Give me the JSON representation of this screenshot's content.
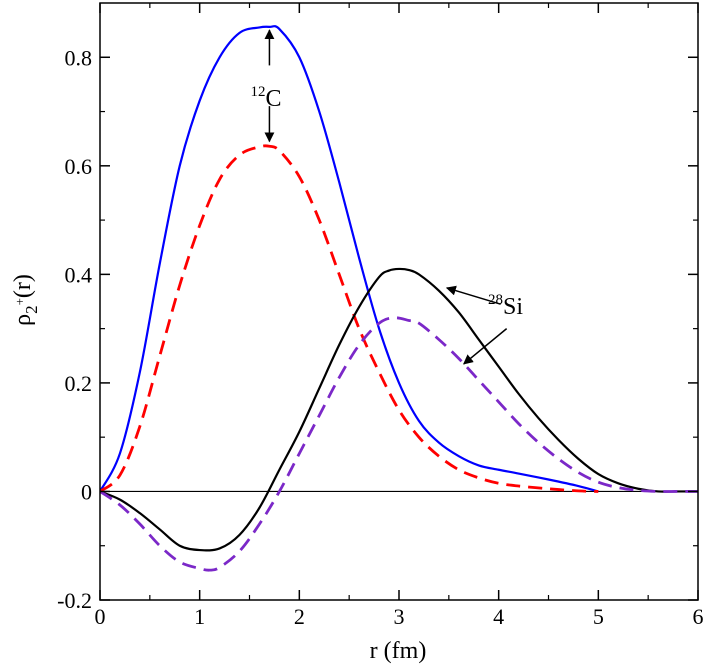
{
  "chart_data": {
    "type": "line",
    "title": "",
    "xlabel": "r (fm)",
    "ylabel": {
      "base": "ρ",
      "sub": "2",
      "subsup": "+",
      "tail": "(r)"
    },
    "xlim": [
      0,
      6
    ],
    "ylim": [
      -0.2,
      0.9
    ],
    "xticks": [
      0,
      1,
      2,
      3,
      4,
      5,
      6
    ],
    "xtick_labels": [
      "0",
      "1",
      "2",
      "3",
      "4",
      "5",
      "6"
    ],
    "yticks": [
      -0.2,
      0,
      0.2,
      0.4,
      0.6,
      0.8
    ],
    "ytick_labels": [
      "-0.2",
      "0",
      "0.2",
      "0.4",
      "0.6",
      "0.8"
    ],
    "grid": false,
    "legend": "none",
    "zero_line": true,
    "series": [
      {
        "name": "12C solid",
        "color": "#0000ff",
        "dash": "solid",
        "x": [
          0,
          0.2,
          0.4,
          0.6,
          0.8,
          1.0,
          1.2,
          1.4,
          1.6,
          1.7,
          1.8,
          2.0,
          2.2,
          2.4,
          2.6,
          2.8,
          3.0,
          3.2,
          3.4,
          3.6,
          3.8,
          4.0,
          4.2,
          4.5,
          4.8,
          5.0
        ],
        "y": [
          0,
          0.07,
          0.22,
          0.42,
          0.6,
          0.72,
          0.8,
          0.845,
          0.855,
          0.856,
          0.852,
          0.8,
          0.7,
          0.57,
          0.43,
          0.3,
          0.2,
          0.13,
          0.09,
          0.065,
          0.048,
          0.04,
          0.033,
          0.022,
          0.01,
          0.0
        ]
      },
      {
        "name": "12C dashed",
        "color": "#ff0000",
        "dash": "dashed",
        "x": [
          0,
          0.2,
          0.4,
          0.6,
          0.8,
          1.0,
          1.2,
          1.4,
          1.6,
          1.7,
          1.8,
          2.0,
          2.2,
          2.4,
          2.6,
          2.8,
          3.0,
          3.2,
          3.4,
          3.6,
          3.8,
          4.0,
          4.2,
          4.5,
          4.8,
          5.0
        ],
        "y": [
          0,
          0.03,
          0.12,
          0.25,
          0.38,
          0.49,
          0.575,
          0.62,
          0.635,
          0.636,
          0.628,
          0.58,
          0.5,
          0.4,
          0.3,
          0.22,
          0.15,
          0.1,
          0.065,
          0.04,
          0.025,
          0.015,
          0.01,
          0.005,
          0.001,
          0.0
        ]
      },
      {
        "name": "28Si solid",
        "color": "#000000",
        "dash": "solid",
        "x": [
          0,
          0.2,
          0.4,
          0.6,
          0.8,
          1.0,
          1.2,
          1.4,
          1.6,
          1.8,
          2.0,
          2.2,
          2.4,
          2.6,
          2.8,
          2.9,
          3.0,
          3.1,
          3.2,
          3.4,
          3.6,
          3.8,
          4.0,
          4.2,
          4.4,
          4.6,
          4.8,
          5.0,
          5.2,
          5.4,
          5.6,
          5.8,
          6.0
        ],
        "y": [
          0,
          -0.015,
          -0.04,
          -0.07,
          -0.1,
          -0.108,
          -0.105,
          -0.08,
          -0.03,
          0.04,
          0.11,
          0.19,
          0.27,
          0.34,
          0.395,
          0.407,
          0.41,
          0.408,
          0.4,
          0.37,
          0.33,
          0.28,
          0.23,
          0.18,
          0.135,
          0.095,
          0.06,
          0.032,
          0.015,
          0.005,
          0.0,
          0.0,
          0.0
        ]
      },
      {
        "name": "28Si dashed",
        "color": "#7b28c8",
        "dash": "dashed",
        "x": [
          0,
          0.2,
          0.4,
          0.6,
          0.8,
          1.0,
          1.1,
          1.2,
          1.4,
          1.6,
          1.8,
          2.0,
          2.2,
          2.4,
          2.6,
          2.8,
          2.95,
          3.1,
          3.2,
          3.4,
          3.6,
          3.8,
          4.0,
          4.2,
          4.4,
          4.6,
          4.8,
          5.0,
          5.2,
          5.4,
          5.6,
          5.8,
          6.0
        ],
        "y": [
          0,
          -0.025,
          -0.06,
          -0.1,
          -0.13,
          -0.142,
          -0.145,
          -0.14,
          -0.11,
          -0.06,
          0.0,
          0.07,
          0.14,
          0.21,
          0.27,
          0.31,
          0.32,
          0.315,
          0.31,
          0.28,
          0.245,
          0.205,
          0.165,
          0.125,
          0.09,
          0.06,
          0.035,
          0.017,
          0.007,
          0.002,
          0.0,
          0.0,
          0.0
        ]
      }
    ],
    "annotations": [
      {
        "id": "annot-12c",
        "sup": "12",
        "text": "C",
        "at": [
          1.7,
          0.745
        ]
      },
      {
        "id": "annot-28si",
        "sup": "28",
        "text": "Si",
        "at": [
          4.05,
          0.335
        ]
      }
    ],
    "arrows": [
      {
        "from": [
          1.7,
          0.785
        ],
        "to": [
          1.7,
          0.85
        ]
      },
      {
        "from": [
          1.7,
          0.71
        ],
        "to": [
          1.7,
          0.645
        ]
      },
      {
        "from": [
          4.02,
          0.345
        ],
        "to": [
          3.48,
          0.375
        ]
      },
      {
        "from": [
          4.08,
          0.3
        ],
        "to": [
          3.65,
          0.235
        ]
      }
    ]
  }
}
